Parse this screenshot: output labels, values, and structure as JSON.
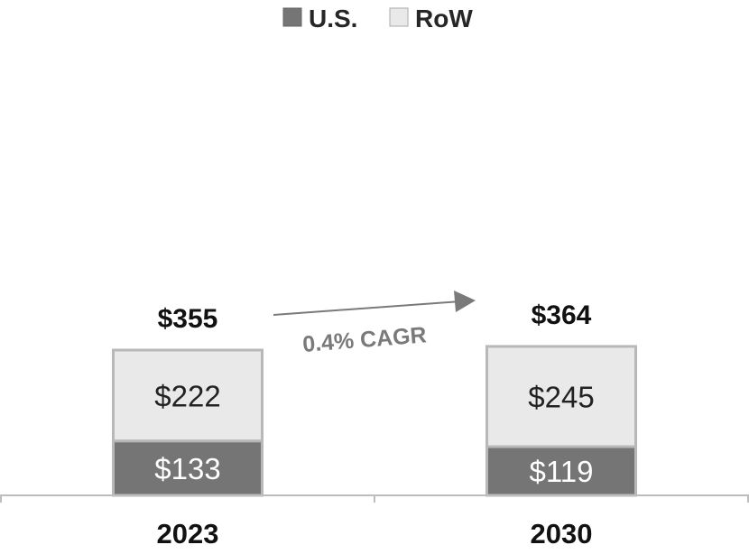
{
  "chart_data": {
    "type": "bar",
    "stacked": true,
    "categories": [
      "2023",
      "2030"
    ],
    "series": [
      {
        "name": "U.S.",
        "values": [
          133,
          119
        ],
        "labels": [
          "$133",
          "$119"
        ],
        "color": "#757575"
      },
      {
        "name": "RoW",
        "values": [
          222,
          245
        ],
        "labels": [
          "$222",
          "$245"
        ],
        "color": "#e9e9e9"
      }
    ],
    "totals": [
      355,
      364
    ],
    "total_labels": [
      "$355",
      "$364"
    ],
    "annotation": {
      "text": "0.4% CAGR",
      "from": "2023",
      "to": "2030"
    },
    "legend": {
      "position": "top-center"
    },
    "grid": false,
    "y_axis_visible": false,
    "colors": {
      "us": "#757575",
      "row": "#e9e9e9",
      "bar_border": "#b8b8b8",
      "axis": "#bdbdbd",
      "arrow": "#7a7a7a",
      "us_label": "#ffffff",
      "row_label": "#222222"
    }
  }
}
